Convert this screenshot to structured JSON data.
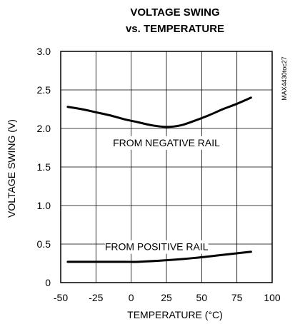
{
  "chart_data": {
    "type": "line",
    "title_line1": "VOLTAGE SWING",
    "title_line2": "vs. TEMPERATURE",
    "xlabel": "TEMPERATURE (°C)",
    "ylabel": "VOLTAGE SWING (V)",
    "side_note": "MAX4430toc27",
    "xlim": [
      -50,
      100
    ],
    "ylim": [
      0,
      3.0
    ],
    "x_ticks": [
      -50,
      -25,
      0,
      25,
      50,
      75,
      100
    ],
    "x_tick_labels": [
      "-50",
      "-25",
      "0",
      "25",
      "50",
      "75",
      "100"
    ],
    "y_ticks": [
      0,
      0.5,
      1.0,
      1.5,
      2.0,
      2.5,
      3.0
    ],
    "y_tick_labels": [
      "0",
      "0.5",
      "1.0",
      "1.5",
      "2.0",
      "2.5",
      "3.0"
    ],
    "grid": true,
    "series": [
      {
        "name": "FROM NEGATIVE RAIL",
        "x": [
          -45,
          -35,
          -25,
          -15,
          -5,
          5,
          15,
          25,
          35,
          45,
          55,
          65,
          75,
          85
        ],
        "y": [
          2.28,
          2.25,
          2.21,
          2.17,
          2.12,
          2.08,
          2.04,
          2.02,
          2.04,
          2.1,
          2.17,
          2.25,
          2.32,
          2.4
        ]
      },
      {
        "name": "FROM POSITIVE RAIL",
        "x": [
          -45,
          -25,
          -5,
          5,
          25,
          45,
          65,
          85
        ],
        "y": [
          0.27,
          0.27,
          0.27,
          0.27,
          0.29,
          0.32,
          0.36,
          0.4
        ]
      }
    ],
    "annotations": [
      {
        "text": "FROM NEGATIVE RAIL",
        "x": 25,
        "y": 1.77
      },
      {
        "text": "FROM POSITIVE RAIL",
        "x": 18,
        "y": 0.42
      }
    ],
    "line_color": "#000000"
  }
}
